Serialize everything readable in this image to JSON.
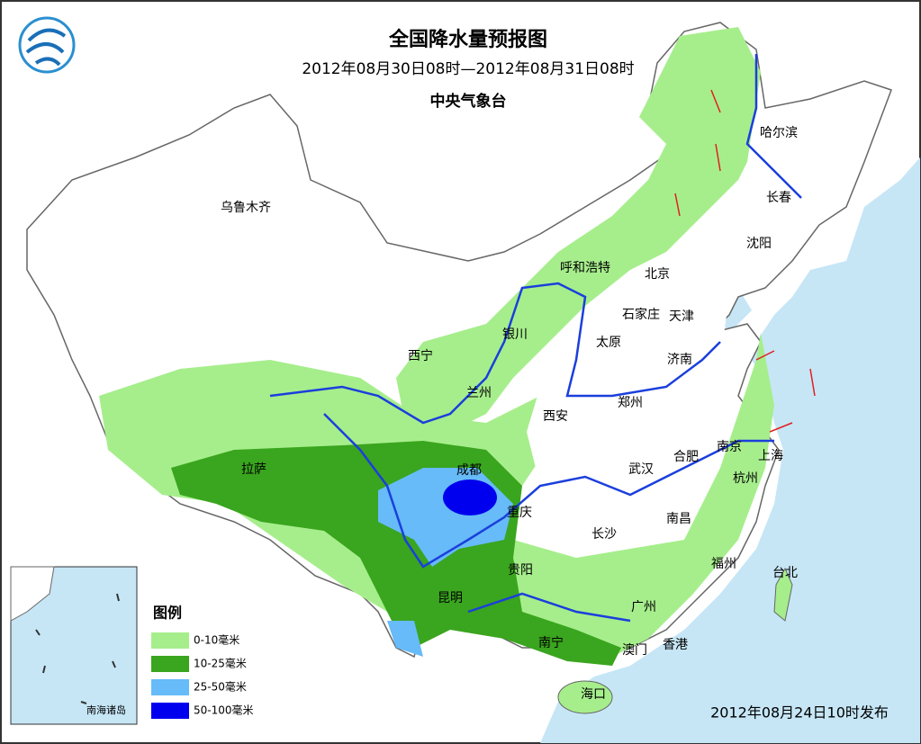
{
  "header": {
    "title": "全国降水量预报图",
    "period": "2012年08月30日08时—2012年08月31日08时",
    "issuer": "中央气象台"
  },
  "cities": [
    {
      "label": "哈尔滨"
    },
    {
      "label": "长春"
    },
    {
      "label": "沈阳"
    },
    {
      "label": "乌鲁木齐"
    },
    {
      "label": "呼和浩特"
    },
    {
      "label": "北京"
    },
    {
      "label": "石家庄"
    },
    {
      "label": "天津"
    },
    {
      "label": "太原"
    },
    {
      "label": "济南"
    },
    {
      "label": "银川"
    },
    {
      "label": "西宁"
    },
    {
      "label": "兰州"
    },
    {
      "label": "郑州"
    },
    {
      "label": "西安"
    },
    {
      "label": "南京"
    },
    {
      "label": "上海"
    },
    {
      "label": "合肥"
    },
    {
      "label": "武汉"
    },
    {
      "label": "杭州"
    },
    {
      "label": "拉萨"
    },
    {
      "label": "成都"
    },
    {
      "label": "重庆"
    },
    {
      "label": "南昌"
    },
    {
      "label": "长沙"
    },
    {
      "label": "贵阳"
    },
    {
      "label": "福州"
    },
    {
      "label": "台北"
    },
    {
      "label": "昆明"
    },
    {
      "label": "广州"
    },
    {
      "label": "南宁"
    },
    {
      "label": "澳门"
    },
    {
      "label": "香港"
    },
    {
      "label": "海口"
    }
  ],
  "legend": {
    "title": "图例",
    "items": [
      {
        "label": "0-10毫米",
        "color": "#a6ee8c"
      },
      {
        "label": "10-25毫米",
        "color": "#3aa51e"
      },
      {
        "label": "25-50毫米",
        "color": "#66bbf8"
      },
      {
        "label": "50-100毫米",
        "color": "#0000ee"
      }
    ]
  },
  "inset": {
    "label": "南海诸岛"
  },
  "footer": {
    "published": "2012年08月24日10时发布"
  }
}
